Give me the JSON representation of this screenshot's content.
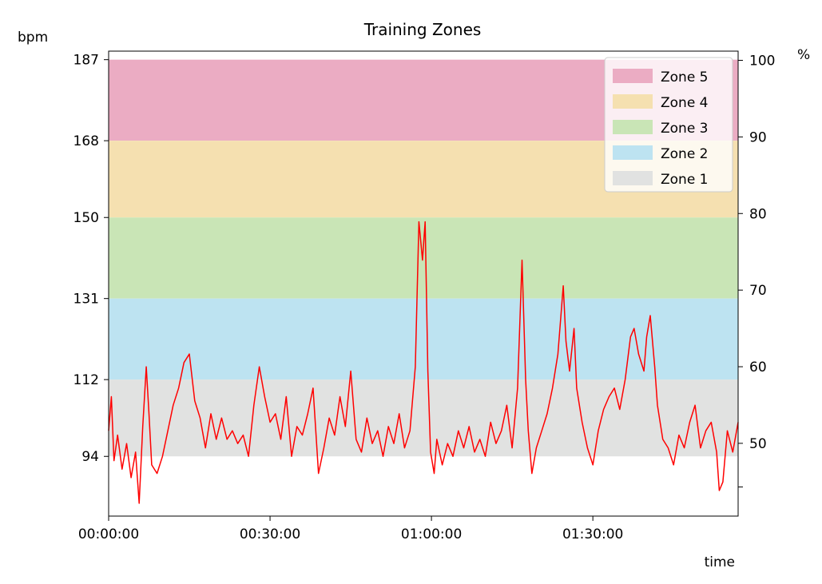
{
  "chart_data": {
    "type": "line",
    "title": "Training Zones",
    "ylabel": "bpm",
    "y2label": "%",
    "xlabel": "time",
    "grid": false,
    "legend_placement": "top-right",
    "x_unit": "hh:mm:ss",
    "xlim": [
      "00:00:00",
      "01:57:00"
    ],
    "ylim": [
      80,
      189
    ],
    "y_ticks": [
      94,
      112,
      131,
      150,
      168,
      187
    ],
    "y2lim": [
      40.5,
      101.2
    ],
    "y2_ticks": [
      50,
      60,
      70,
      80,
      90,
      100
    ],
    "x_ticks": [
      "00:00:00",
      "00:30:00",
      "01:00:00",
      "01:30:00"
    ],
    "zones": [
      {
        "name": "Zone 5",
        "low": 168,
        "high": 187,
        "color": "#ebacc3"
      },
      {
        "name": "Zone 4",
        "low": 150,
        "high": 168,
        "color": "#f5e0b0"
      },
      {
        "name": "Zone 3",
        "low": 131,
        "high": 150,
        "color": "#c9e5b6"
      },
      {
        "name": "Zone 2",
        "low": 112,
        "high": 131,
        "color": "#bde3f1"
      },
      {
        "name": "Zone 1",
        "low": 94,
        "high": 112,
        "color": "#e1e2e1"
      }
    ],
    "series": [
      {
        "color": "#ff0000",
        "points": [
          [
            "00:00:00",
            100
          ],
          [
            "00:00:30",
            108
          ],
          [
            "00:01:00",
            93
          ],
          [
            "00:01:40",
            99
          ],
          [
            "00:02:30",
            91
          ],
          [
            "00:03:20",
            97
          ],
          [
            "00:04:10",
            89
          ],
          [
            "00:05:00",
            95
          ],
          [
            "00:05:40",
            83
          ],
          [
            "00:06:20",
            101
          ],
          [
            "00:07:00",
            115
          ],
          [
            "00:07:30",
            104
          ],
          [
            "00:08:00",
            92
          ],
          [
            "00:09:00",
            90
          ],
          [
            "00:10:00",
            94
          ],
          [
            "00:11:00",
            100
          ],
          [
            "00:12:00",
            106
          ],
          [
            "00:13:00",
            110
          ],
          [
            "00:14:00",
            116
          ],
          [
            "00:15:00",
            118
          ],
          [
            "00:16:00",
            107
          ],
          [
            "00:17:00",
            103
          ],
          [
            "00:18:00",
            96
          ],
          [
            "00:19:00",
            104
          ],
          [
            "00:20:00",
            98
          ],
          [
            "00:21:00",
            103
          ],
          [
            "00:22:00",
            98
          ],
          [
            "00:23:00",
            100
          ],
          [
            "00:24:00",
            97
          ],
          [
            "00:25:00",
            99
          ],
          [
            "00:26:00",
            94
          ],
          [
            "00:27:00",
            106
          ],
          [
            "00:28:00",
            115
          ],
          [
            "00:29:00",
            108
          ],
          [
            "00:30:00",
            102
          ],
          [
            "00:31:00",
            104
          ],
          [
            "00:32:00",
            98
          ],
          [
            "00:33:00",
            108
          ],
          [
            "00:34:00",
            94
          ],
          [
            "00:35:00",
            101
          ],
          [
            "00:36:00",
            99
          ],
          [
            "00:37:00",
            104
          ],
          [
            "00:38:00",
            110
          ],
          [
            "00:39:00",
            90
          ],
          [
            "00:40:00",
            96
          ],
          [
            "00:41:00",
            103
          ],
          [
            "00:42:00",
            99
          ],
          [
            "00:43:00",
            108
          ],
          [
            "00:44:00",
            101
          ],
          [
            "00:45:00",
            114
          ],
          [
            "00:46:00",
            98
          ],
          [
            "00:47:00",
            95
          ],
          [
            "00:48:00",
            103
          ],
          [
            "00:49:00",
            97
          ],
          [
            "00:50:00",
            100
          ],
          [
            "00:51:00",
            94
          ],
          [
            "00:52:00",
            101
          ],
          [
            "00:53:00",
            97
          ],
          [
            "00:54:00",
            104
          ],
          [
            "00:55:00",
            96
          ],
          [
            "00:56:00",
            100
          ],
          [
            "00:57:00",
            115
          ],
          [
            "00:57:40",
            149
          ],
          [
            "00:58:20",
            140
          ],
          [
            "00:58:50",
            149
          ],
          [
            "00:59:20",
            114
          ],
          [
            "00:59:50",
            95
          ],
          [
            "01:00:30",
            90
          ],
          [
            "01:01:00",
            98
          ],
          [
            "01:02:00",
            92
          ],
          [
            "01:03:00",
            97
          ],
          [
            "01:04:00",
            94
          ],
          [
            "01:05:00",
            100
          ],
          [
            "01:06:00",
            96
          ],
          [
            "01:07:00",
            101
          ],
          [
            "01:08:00",
            95
          ],
          [
            "01:09:00",
            98
          ],
          [
            "01:10:00",
            94
          ],
          [
            "01:11:00",
            102
          ],
          [
            "01:12:00",
            97
          ],
          [
            "01:13:00",
            100
          ],
          [
            "01:14:00",
            106
          ],
          [
            "01:15:00",
            96
          ],
          [
            "01:16:00",
            110
          ],
          [
            "01:16:50",
            140
          ],
          [
            "01:17:30",
            112
          ],
          [
            "01:18:00",
            100
          ],
          [
            "01:18:40",
            90
          ],
          [
            "01:19:30",
            96
          ],
          [
            "01:20:30",
            100
          ],
          [
            "01:21:30",
            104
          ],
          [
            "01:22:30",
            110
          ],
          [
            "01:23:30",
            118
          ],
          [
            "01:24:30",
            134
          ],
          [
            "01:25:00",
            121
          ],
          [
            "01:25:40",
            114
          ],
          [
            "01:26:30",
            124
          ],
          [
            "01:27:00",
            110
          ],
          [
            "01:28:00",
            102
          ],
          [
            "01:29:00",
            96
          ],
          [
            "01:30:00",
            92
          ],
          [
            "01:31:00",
            100
          ],
          [
            "01:32:00",
            105
          ],
          [
            "01:33:00",
            108
          ],
          [
            "01:34:00",
            110
          ],
          [
            "01:35:00",
            105
          ],
          [
            "01:36:00",
            112
          ],
          [
            "01:37:00",
            122
          ],
          [
            "01:37:40",
            124
          ],
          [
            "01:38:30",
            118
          ],
          [
            "01:39:30",
            114
          ],
          [
            "01:40:00",
            122
          ],
          [
            "01:40:40",
            127
          ],
          [
            "01:41:30",
            115
          ],
          [
            "01:42:00",
            106
          ],
          [
            "01:43:00",
            98
          ],
          [
            "01:44:00",
            96
          ],
          [
            "01:45:00",
            92
          ],
          [
            "01:46:00",
            99
          ],
          [
            "01:47:00",
            96
          ],
          [
            "01:48:00",
            102
          ],
          [
            "01:49:00",
            106
          ],
          [
            "01:50:00",
            96
          ],
          [
            "01:51:00",
            100
          ],
          [
            "01:52:00",
            102
          ],
          [
            "01:53:00",
            95
          ],
          [
            "01:53:30",
            86
          ],
          [
            "01:54:10",
            88
          ],
          [
            "01:55:00",
            100
          ],
          [
            "01:56:00",
            95
          ],
          [
            "01:57:00",
            102
          ]
        ]
      }
    ]
  }
}
